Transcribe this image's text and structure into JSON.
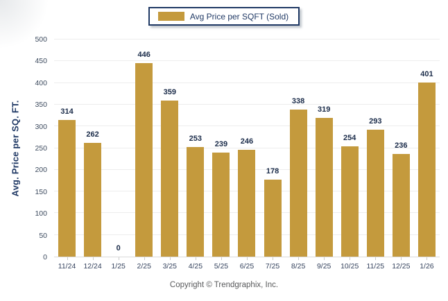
{
  "legend": {
    "label": "Avg Price per SQFT (Sold)"
  },
  "footer": {
    "copyright": "Copyright © Trendgraphix, Inc."
  },
  "colors": {
    "bar": "#C49A3D",
    "navy": "#1F3864",
    "value_label": "#1A2B49",
    "grid": "#EDEDED",
    "axis": "#D8D8D8",
    "copyright": "#58595B"
  },
  "chart_data": {
    "type": "bar",
    "title": "",
    "series_name": "Avg Price per SQFT (Sold)",
    "ylabel": "Avg. Price per SQ. FT.",
    "xlabel": "",
    "ylim": [
      0,
      500
    ],
    "y_ticks": [
      0,
      50,
      100,
      150,
      200,
      250,
      300,
      350,
      400,
      450,
      500
    ],
    "grid": true,
    "legend_position": "top-center",
    "categories": [
      "11/24",
      "12/24",
      "1/25",
      "2/25",
      "3/25",
      "4/25",
      "5/25",
      "6/25",
      "7/25",
      "8/25",
      "9/25",
      "10/25",
      "11/25",
      "12/25",
      "1/26"
    ],
    "values": [
      314,
      262,
      0,
      446,
      359,
      253,
      239,
      246,
      178,
      338,
      319,
      254,
      293,
      236,
      401
    ],
    "data_labels": true
  }
}
